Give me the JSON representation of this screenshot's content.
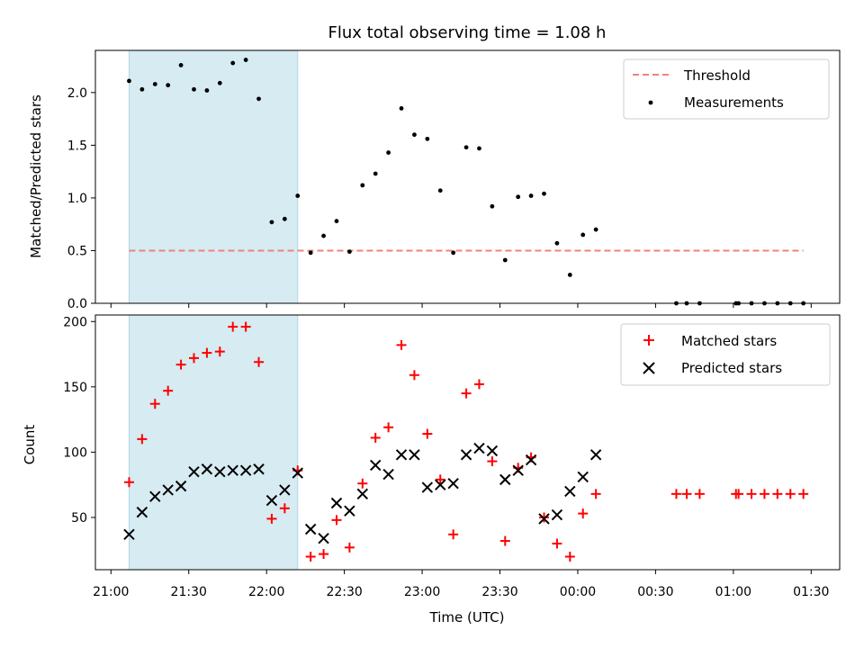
{
  "chart_data": {
    "type": "scatter",
    "title": "Flux total observing time = 1.08 h",
    "xlabel": "Time (UTC)",
    "x_ticks": [
      "21:00",
      "21:30",
      "22:00",
      "22:30",
      "23:00",
      "23:30",
      "00:00",
      "00:30",
      "01:00",
      "01:30"
    ],
    "x_tick_minutes": [
      0,
      30,
      60,
      90,
      120,
      150,
      180,
      210,
      240,
      270
    ],
    "xlim_minutes": [
      -6,
      281
    ],
    "highlight_span_minutes": [
      7,
      72
    ],
    "highlight_color": "#add8e6",
    "top_panel": {
      "ylabel": "Matched/Predicted stars",
      "ylim": [
        0,
        2.4
      ],
      "y_ticks": [
        "0.0",
        "0.5",
        "1.0",
        "1.5",
        "2.0"
      ],
      "y_tick_values": [
        0,
        0.5,
        1.0,
        1.5,
        2.0
      ],
      "threshold": {
        "name": "Threshold",
        "value": 0.5,
        "x_range_minutes": [
          7,
          267
        ],
        "color": "#f08080",
        "style": "dashed"
      },
      "series": [
        {
          "name": "Measurements",
          "marker": "dot",
          "color": "#000000",
          "x": [
            7,
            12,
            17,
            22,
            27,
            32,
            37,
            42,
            47,
            52,
            57,
            62,
            67,
            72,
            77,
            82,
            87,
            92,
            97,
            102,
            107,
            112,
            117,
            122,
            127,
            132,
            137,
            142,
            147,
            152,
            157,
            162,
            167,
            172,
            177,
            182,
            187,
            218,
            222,
            227,
            241,
            242,
            247,
            252,
            257,
            262,
            267
          ],
          "y": [
            2.11,
            2.03,
            2.08,
            2.07,
            2.26,
            2.03,
            2.02,
            2.09,
            2.28,
            2.31,
            1.94,
            0.77,
            0.8,
            1.02,
            0.48,
            0.64,
            0.78,
            0.49,
            1.12,
            1.23,
            1.43,
            1.85,
            1.6,
            1.56,
            1.07,
            0.48,
            1.48,
            1.47,
            0.92,
            0.41,
            1.01,
            1.02,
            1.04,
            0.57,
            0.27,
            0.65,
            0.7,
            0,
            0,
            0,
            0,
            0,
            0,
            0,
            0,
            0,
            0
          ]
        }
      ],
      "legend_position": "upper right"
    },
    "bottom_panel": {
      "ylabel": "Count",
      "ylim": [
        10,
        205
      ],
      "y_ticks": [
        "50",
        "100",
        "150",
        "200"
      ],
      "y_tick_values": [
        50,
        100,
        150,
        200
      ],
      "series": [
        {
          "name": "Matched stars",
          "marker": "plus",
          "color": "#ff0000",
          "x": [
            7,
            12,
            17,
            22,
            27,
            32,
            37,
            42,
            47,
            52,
            57,
            62,
            67,
            72,
            77,
            82,
            87,
            92,
            97,
            102,
            107,
            112,
            117,
            122,
            127,
            132,
            137,
            142,
            147,
            152,
            157,
            162,
            167,
            172,
            177,
            182,
            187,
            218,
            222,
            227,
            241,
            242,
            247,
            252,
            257,
            262,
            267
          ],
          "y": [
            77,
            110,
            137,
            147,
            167,
            172,
            176,
            177,
            196,
            196,
            169,
            49,
            57,
            86,
            20,
            22,
            48,
            27,
            76,
            111,
            119,
            182,
            159,
            114,
            79,
            37,
            145,
            152,
            93,
            32,
            88,
            96,
            50,
            30,
            20,
            53,
            68,
            68,
            68,
            68,
            68,
            68,
            68,
            68,
            68,
            68,
            68
          ]
        },
        {
          "name": "Predicted stars",
          "marker": "x",
          "color": "#000000",
          "x": [
            7,
            12,
            17,
            22,
            27,
            32,
            37,
            42,
            47,
            52,
            57,
            62,
            67,
            72,
            77,
            82,
            87,
            92,
            97,
            102,
            107,
            112,
            117,
            122,
            127,
            132,
            137,
            142,
            147,
            152,
            157,
            162,
            167,
            172,
            177,
            182,
            187
          ],
          "y": [
            37,
            54,
            66,
            71,
            74,
            85,
            87,
            85,
            86,
            86,
            87,
            63,
            71,
            84,
            41,
            34,
            61,
            55,
            68,
            90,
            83,
            98,
            98,
            73,
            75,
            76,
            98,
            103,
            101,
            79,
            86,
            94,
            49,
            52,
            70,
            81,
            98
          ]
        }
      ],
      "legend_position": "upper right"
    }
  }
}
